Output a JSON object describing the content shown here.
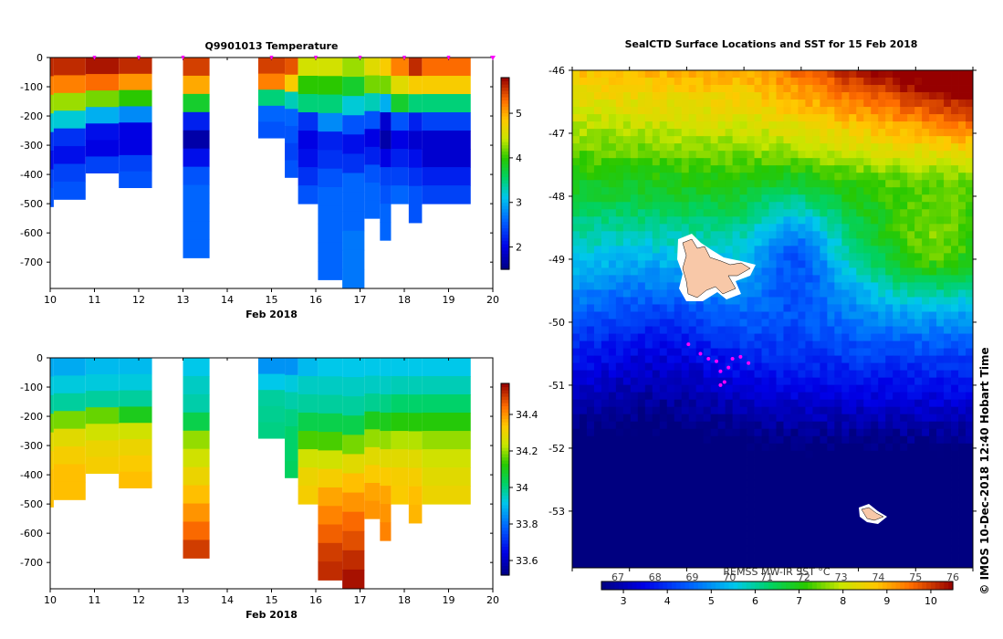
{
  "colors": {
    "background": "#ffffff",
    "marker": "#ff00ff",
    "island": "#f8c8a8"
  },
  "chart_data": [
    {
      "id": "temperature-section",
      "type": "heatmap",
      "title": "Q9901013  Temperature",
      "xlabel": "Feb 2018",
      "ylabel": "",
      "xlim": [
        10,
        20
      ],
      "ylim": [
        -790,
        0
      ],
      "x_ticks": [
        "10",
        "11",
        "12",
        "13",
        "14",
        "15",
        "16",
        "17",
        "18",
        "19",
        "20"
      ],
      "y_ticks": [
        "0",
        "-100",
        "-200",
        "-300",
        "-400",
        "-500",
        "-600",
        "-700"
      ],
      "colorbar": {
        "min": 1.5,
        "max": 5.8,
        "ticks": [
          "2",
          "3",
          "4",
          "5"
        ]
      },
      "profile_markers_x": [
        11,
        12,
        13,
        15,
        16,
        17,
        18,
        19,
        20
      ],
      "profiles": [
        {
          "x0": 10.0,
          "x1": 10.08,
          "depth": 510,
          "values": [
            5.6,
            5.2,
            4.3,
            3.2,
            2.3,
            2.1,
            2.4,
            2.5
          ]
        },
        {
          "x0": 10.08,
          "x1": 10.8,
          "depth": 485,
          "values": [
            5.6,
            5.2,
            4.3,
            3.2,
            2.3,
            2.1,
            2.4,
            2.5
          ]
        },
        {
          "x0": 10.8,
          "x1": 11.55,
          "depth": 395,
          "values": [
            5.7,
            5.3,
            4.2,
            3.0,
            2.1,
            2.0,
            2.4
          ]
        },
        {
          "x0": 11.55,
          "x1": 12.3,
          "depth": 445,
          "values": [
            5.6,
            5.1,
            4.0,
            2.8,
            2.0,
            2.0,
            2.4,
            2.5
          ]
        },
        {
          "x0": 13.0,
          "x1": 13.6,
          "depth": 685,
          "values": [
            5.5,
            5.0,
            3.8,
            2.2,
            1.7,
            2.1,
            2.5,
            2.6,
            2.6,
            2.6,
            2.6
          ]
        },
        {
          "x0": 14.7,
          "x1": 15.3,
          "depth": 275,
          "values": [
            5.5,
            5.2,
            3.5,
            2.6,
            2.5
          ]
        },
        {
          "x0": 15.3,
          "x1": 15.6,
          "depth": 410,
          "values": [
            5.4,
            4.8,
            3.3,
            2.6,
            2.5,
            2.4,
            2.5
          ]
        },
        {
          "x0": 15.6,
          "x1": 16.05,
          "depth": 500,
          "values": [
            4.5,
            4.0,
            3.5,
            2.3,
            2.0,
            2.1,
            2.3,
            2.5
          ]
        },
        {
          "x0": 16.05,
          "x1": 16.6,
          "depth": 760,
          "values": [
            4.5,
            4.0,
            3.5,
            2.8,
            2.2,
            2.3,
            2.5,
            2.6,
            2.6,
            2.6,
            2.6,
            2.6
          ]
        },
        {
          "x0": 16.6,
          "x1": 17.1,
          "depth": 790,
          "values": [
            4.3,
            3.8,
            3.2,
            2.5,
            2.1,
            2.3,
            2.6,
            2.6,
            2.6,
            2.7,
            2.7,
            2.7
          ]
        },
        {
          "x0": 17.1,
          "x1": 17.45,
          "depth": 550,
          "values": [
            4.6,
            4.2,
            3.3,
            2.5,
            2.0,
            2.2,
            2.5,
            2.6,
            2.6
          ]
        },
        {
          "x0": 17.45,
          "x1": 17.7,
          "depth": 625,
          "values": [
            4.8,
            4.2,
            3.0,
            1.9,
            1.7,
            2.0,
            2.4,
            2.5,
            2.6,
            2.6
          ]
        },
        {
          "x0": 17.7,
          "x1": 18.1,
          "depth": 500,
          "values": [
            5.2,
            4.6,
            3.8,
            2.5,
            2.0,
            2.2,
            2.4,
            2.6
          ]
        },
        {
          "x0": 18.1,
          "x1": 18.4,
          "depth": 565,
          "values": [
            5.6,
            4.8,
            3.5,
            2.2,
            1.9,
            2.1,
            2.3,
            2.5,
            2.5
          ]
        },
        {
          "x0": 18.4,
          "x1": 19.5,
          "depth": 500,
          "values": [
            5.3,
            4.8,
            3.5,
            2.4,
            1.9,
            1.9,
            2.2,
            2.4
          ]
        }
      ]
    },
    {
      "id": "salinity-section",
      "type": "heatmap",
      "title": "",
      "xlabel": "Feb 2018",
      "ylabel": "",
      "xlim": [
        10,
        20
      ],
      "ylim": [
        -790,
        0
      ],
      "x_ticks": [
        "10",
        "11",
        "12",
        "13",
        "14",
        "15",
        "16",
        "17",
        "18",
        "19",
        "20"
      ],
      "y_ticks": [
        "0",
        "-100",
        "-200",
        "-300",
        "-400",
        "-500",
        "-600",
        "-700"
      ],
      "colorbar": {
        "min": 33.52,
        "max": 34.57,
        "ticks": [
          "33.6",
          "33.8",
          "34",
          "34.2",
          "34.4"
        ]
      },
      "profiles": [
        {
          "x0": 10.0,
          "x1": 10.08,
          "depth": 510,
          "values": [
            33.88,
            33.93,
            33.98,
            34.18,
            34.28,
            34.32,
            34.35,
            34.35
          ]
        },
        {
          "x0": 10.08,
          "x1": 10.8,
          "depth": 485,
          "values": [
            33.88,
            33.93,
            33.98,
            34.18,
            34.28,
            34.32,
            34.35,
            34.35
          ]
        },
        {
          "x0": 10.8,
          "x1": 11.55,
          "depth": 395,
          "values": [
            33.9,
            33.93,
            33.98,
            34.17,
            34.25,
            34.3,
            34.32
          ]
        },
        {
          "x0": 11.55,
          "x1": 12.3,
          "depth": 445,
          "values": [
            33.9,
            33.93,
            33.98,
            34.1,
            34.25,
            34.3,
            34.33,
            34.35
          ]
        },
        {
          "x0": 13.0,
          "x1": 13.6,
          "depth": 685,
          "values": [
            33.92,
            33.95,
            33.97,
            34.05,
            34.2,
            34.25,
            34.3,
            34.35,
            34.4,
            34.45,
            34.5
          ]
        },
        {
          "x0": 14.7,
          "x1": 15.3,
          "depth": 275,
          "values": [
            33.85,
            33.92,
            33.98,
            33.99,
            34.0
          ]
        },
        {
          "x0": 15.3,
          "x1": 15.6,
          "depth": 410,
          "values": [
            33.85,
            33.93,
            33.97,
            34.0,
            34.02,
            34.02,
            34.03
          ]
        },
        {
          "x0": 15.6,
          "x1": 16.05,
          "depth": 500,
          "values": [
            33.9,
            33.95,
            33.98,
            34.05,
            34.15,
            34.25,
            34.3,
            34.32
          ]
        },
        {
          "x0": 16.05,
          "x1": 16.6,
          "depth": 760,
          "values": [
            33.92,
            33.95,
            33.98,
            34.05,
            34.15,
            34.25,
            34.32,
            34.38,
            34.42,
            34.46,
            34.5,
            34.52
          ]
        },
        {
          "x0": 16.6,
          "x1": 17.1,
          "depth": 790,
          "values": [
            33.92,
            33.95,
            33.98,
            34.05,
            34.18,
            34.28,
            34.35,
            34.4,
            34.45,
            34.48,
            34.52,
            34.55
          ]
        },
        {
          "x0": 17.1,
          "x1": 17.45,
          "depth": 550,
          "values": [
            33.92,
            33.95,
            33.99,
            34.1,
            34.2,
            34.28,
            34.33,
            34.38,
            34.4
          ]
        },
        {
          "x0": 17.45,
          "x1": 17.7,
          "depth": 625,
          "values": [
            33.92,
            33.95,
            34.0,
            34.1,
            34.2,
            34.28,
            34.33,
            34.38,
            34.4,
            34.42
          ]
        },
        {
          "x0": 17.7,
          "x1": 18.1,
          "depth": 500,
          "values": [
            33.92,
            33.96,
            34.02,
            34.12,
            34.22,
            34.28,
            34.32,
            34.33
          ]
        },
        {
          "x0": 18.1,
          "x1": 18.4,
          "depth": 565,
          "values": [
            33.92,
            33.96,
            34.02,
            34.12,
            34.22,
            34.28,
            34.32,
            34.35,
            34.36
          ]
        },
        {
          "x0": 18.4,
          "x1": 19.5,
          "depth": 500,
          "values": [
            33.92,
            33.96,
            34.02,
            34.12,
            34.2,
            34.25,
            34.28,
            34.3
          ]
        }
      ]
    },
    {
      "id": "sst-map",
      "type": "heatmap",
      "title": "SealCTD Surface Locations and SST for 15 Feb 2018",
      "xlabel": "",
      "ylabel": "",
      "y_ticks": [
        "-46",
        "-47",
        "-48",
        "-49",
        "-50",
        "-51",
        "-52",
        "-53"
      ],
      "ylim": [
        -53.9,
        -46.0
      ],
      "sst_range_c": [
        2.5,
        10.5
      ],
      "sst_colorbar_ticks_c": [
        "3",
        "4",
        "5",
        "6",
        "7",
        "8",
        "9",
        "10"
      ],
      "sst_colorbar_ticks_f": [
        "67",
        "68",
        "69",
        "70",
        "71",
        "72",
        "73",
        "74",
        "75",
        "76"
      ],
      "colorbar_label": "REMSS MW-IR SST °C",
      "side_caption": "© IMOS 10-Dec-2018 12:40 Hobart Time",
      "ctd_locations": [
        {
          "lon": 0.29,
          "lat": -50.35
        },
        {
          "lon": 0.32,
          "lat": -50.5
        },
        {
          "lon": 0.34,
          "lat": -50.58
        },
        {
          "lon": 0.36,
          "lat": -50.62
        },
        {
          "lon": 0.37,
          "lat": -50.78
        },
        {
          "lon": 0.39,
          "lat": -50.72
        },
        {
          "lon": 0.4,
          "lat": -50.58
        },
        {
          "lon": 0.42,
          "lat": -50.55
        },
        {
          "lon": 0.44,
          "lat": -50.65
        },
        {
          "lon": 0.38,
          "lat": -50.95
        },
        {
          "lon": 0.37,
          "lat": -51.0
        }
      ]
    }
  ]
}
